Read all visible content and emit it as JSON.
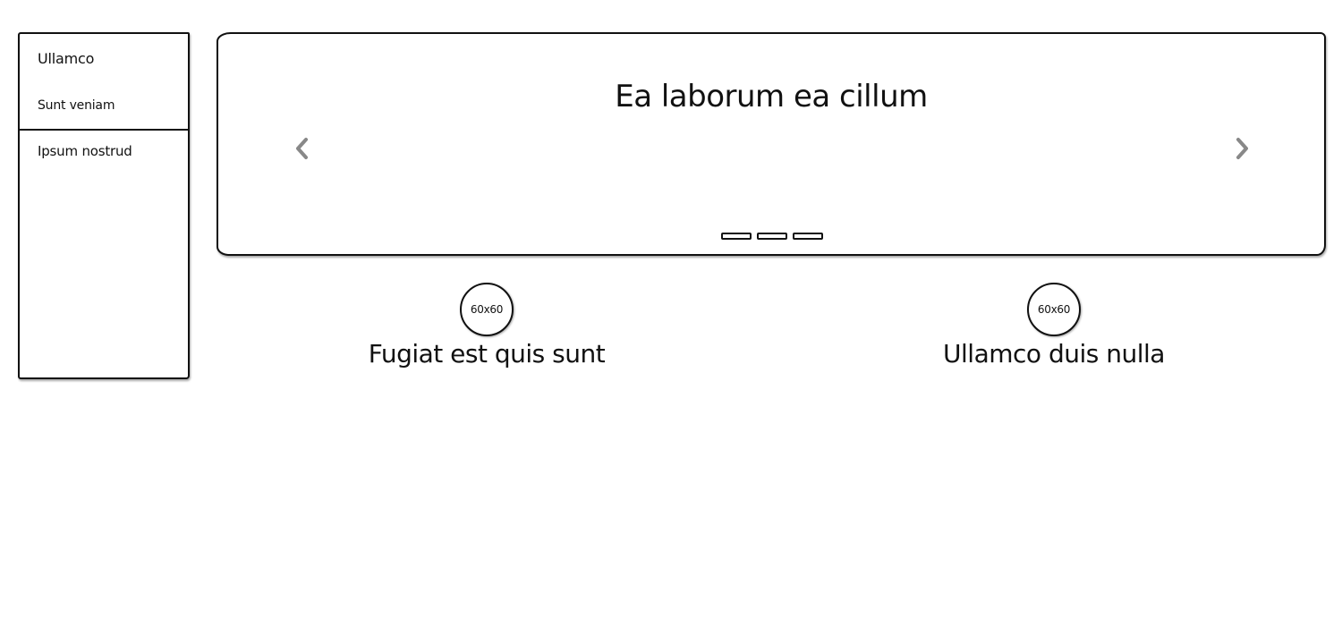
{
  "sidebar": {
    "items": [
      {
        "label": "Ullamco"
      },
      {
        "label": "Sunt veniam"
      },
      {
        "label": "Ipsum nostrud"
      }
    ]
  },
  "carousel": {
    "title": "Ea laborum ea cillum",
    "prev_icon": "chevron-left-icon",
    "next_icon": "chevron-right-icon",
    "indicator_count": 3,
    "arrow_color": "#888888"
  },
  "features": [
    {
      "image_label": "60x60",
      "heading": "Fugiat est quis sunt"
    },
    {
      "image_label": "60x60",
      "heading": "Ullamco duis nulla"
    }
  ]
}
